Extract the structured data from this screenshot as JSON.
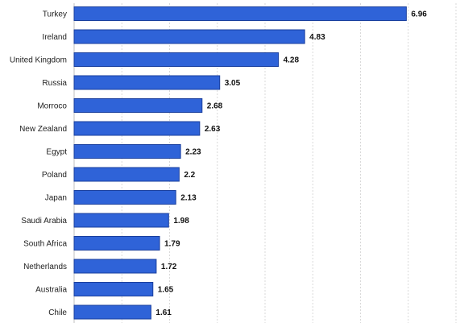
{
  "chart_data": {
    "type": "bar",
    "orientation": "horizontal",
    "categories": [
      "Turkey",
      "Ireland",
      "United Kingdom",
      "Russia",
      "Morroco",
      "New Zealand",
      "Egypt",
      "Poland",
      "Japan",
      "Saudi Arabia",
      "South Africa",
      "Netherlands",
      "Australia",
      "Chile"
    ],
    "values": [
      6.96,
      4.83,
      4.28,
      3.05,
      2.68,
      2.63,
      2.23,
      2.2,
      2.13,
      1.98,
      1.79,
      1.72,
      1.65,
      1.61
    ],
    "value_labels": [
      "6.96",
      "4.83",
      "4.28",
      "3.05",
      "2.68",
      "2.63",
      "2.23",
      "2.2",
      "2.13",
      "1.98",
      "1.79",
      "1.72",
      "1.65",
      "1.61"
    ],
    "title": "",
    "xlabel": "",
    "ylabel": "",
    "xlim": [
      0,
      8
    ],
    "grid": true,
    "legend": "none",
    "bar_color": "#2f63d8",
    "bar_edge_color": "#1a3f9e",
    "grid_color": "#d9d9d9"
  }
}
